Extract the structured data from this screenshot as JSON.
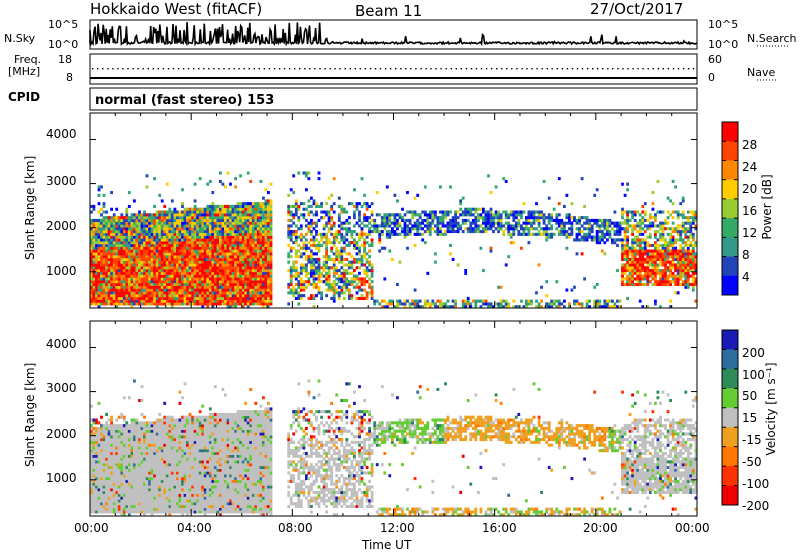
{
  "header": {
    "title": "Hokkaido West (fitACF)",
    "beam": "Beam 11",
    "date": "27/Oct/2017"
  },
  "noise_panel": {
    "left_label": "N.Sky",
    "right_label": "N.Search",
    "left_ticks": [
      "10^5",
      "10^0"
    ],
    "right_ticks": [
      "10^5",
      "10^0"
    ]
  },
  "freq_panel": {
    "left_label_top": "Freq.",
    "left_label_bottom": "[MHz]",
    "left_ticks": [
      "18",
      "8"
    ],
    "right_label": "Nave",
    "right_ticks": [
      "60",
      "0"
    ]
  },
  "cpid": {
    "label": "CPID",
    "value": "normal (fast stereo) 153"
  },
  "chart_data": [
    {
      "type": "heatmap",
      "name": "power",
      "ylabel": "Slant Range [km]",
      "ylim": [
        180,
        4600
      ],
      "yticks": [
        "1000",
        "2000",
        "3000",
        "4000"
      ],
      "xlim": [
        0,
        24
      ],
      "colorbar": {
        "label": "Power [dB]",
        "ticks": [
          "28",
          "24",
          "20",
          "16",
          "12",
          "8",
          "4"
        ],
        "colors": [
          "#ff0000",
          "#ff4400",
          "#ff8800",
          "#ffcc00",
          "#99cc33",
          "#33aa66",
          "#339988",
          "#2244bb",
          "#0000ff"
        ]
      }
    },
    {
      "type": "heatmap",
      "name": "velocity",
      "ylabel": "Slant Range [km]",
      "ylim": [
        180,
        4600
      ],
      "yticks": [
        "1000",
        "2000",
        "3000",
        "4000"
      ],
      "xlim": [
        0,
        24
      ],
      "colorbar": {
        "label": "Velocity [m s⁻¹]",
        "ticks": [
          "200",
          "100",
          "50",
          "15",
          "-15",
          "-50",
          "-100",
          "-200"
        ],
        "colors": [
          "#1a1ab4",
          "#2e6e9e",
          "#2e8b57",
          "#66cc33",
          "#c0c0c0",
          "#f0a020",
          "#ff7700",
          "#ff3300",
          "#ee0000"
        ]
      }
    }
  ],
  "xaxis": {
    "label": "Time UT",
    "ticks": [
      "00:00",
      "04:00",
      "08:00",
      "12:00",
      "16:00",
      "20:00",
      "00:00"
    ]
  }
}
